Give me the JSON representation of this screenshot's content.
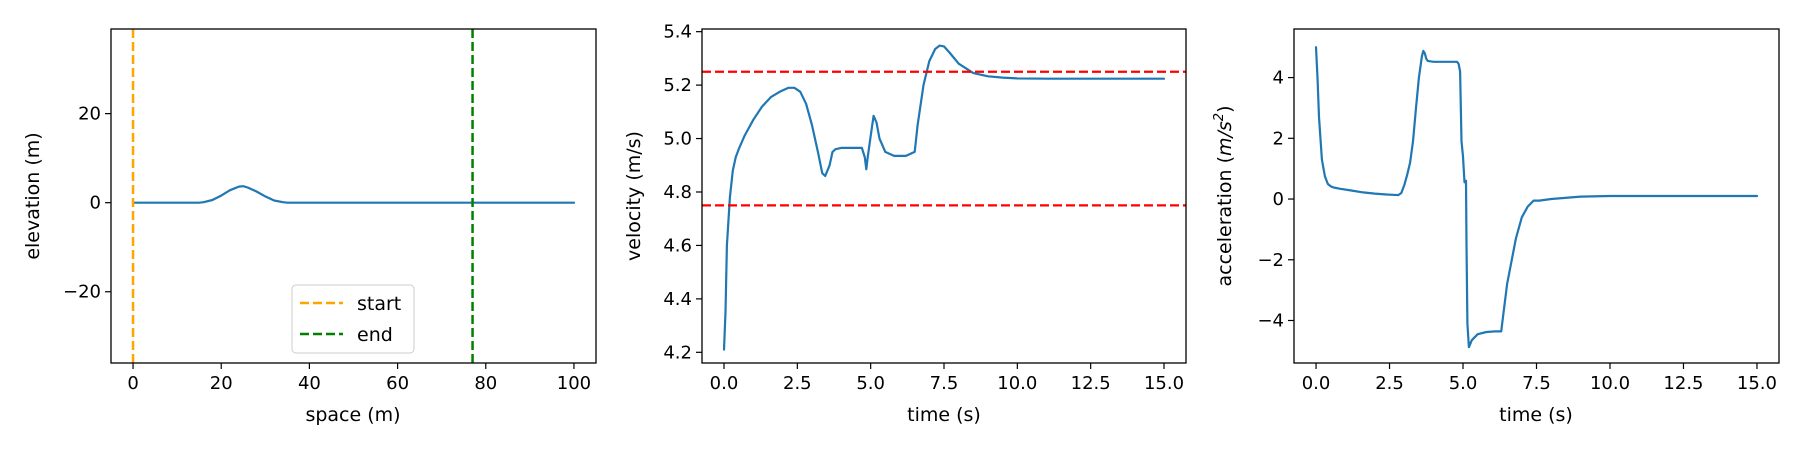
{
  "chart_data": [
    {
      "type": "line",
      "xlabel": "space (m)",
      "ylabel": "elevation (m)",
      "xlim": [
        -5,
        105
      ],
      "ylim": [
        -36,
        39
      ],
      "xticks": [
        0,
        20,
        40,
        60,
        80,
        100
      ],
      "xtick_labels": [
        "0",
        "20",
        "40",
        "60",
        "80",
        "100"
      ],
      "yticks": [
        -20,
        0,
        20
      ],
      "ytick_labels": [
        "−20",
        "0",
        "20"
      ],
      "grid": false,
      "legend_position": "lower-center",
      "series": [
        {
          "color": "#1f77b4",
          "x": [
            0,
            5,
            10,
            15,
            16,
            18,
            20,
            22,
            24,
            25,
            26,
            28,
            30,
            32,
            34,
            35,
            40,
            50,
            60,
            70,
            80,
            90,
            100
          ],
          "y": [
            0,
            0,
            0,
            0,
            0.1,
            0.6,
            1.6,
            2.8,
            3.6,
            3.7,
            3.4,
            2.5,
            1.4,
            0.5,
            0.1,
            0,
            0,
            0,
            0,
            0,
            0,
            0,
            0
          ]
        }
      ],
      "vlines": [
        {
          "name": "start",
          "x": 0,
          "color": "#ffa500",
          "dash": true
        },
        {
          "name": "end",
          "x": 77,
          "color": "#008000",
          "dash": true
        }
      ]
    },
    {
      "type": "line",
      "xlabel": "time (s)",
      "ylabel": "velocity (m/s)",
      "xlim": [
        -0.75,
        15.75
      ],
      "ylim": [
        4.16,
        5.41
      ],
      "xticks": [
        0,
        2.5,
        5,
        7.5,
        10,
        12.5,
        15
      ],
      "xtick_labels": [
        "0.0",
        "2.5",
        "5.0",
        "7.5",
        "10.0",
        "12.5",
        "15.0"
      ],
      "yticks": [
        4.2,
        4.4,
        4.6,
        4.8,
        5.0,
        5.2,
        5.4
      ],
      "ytick_labels": [
        "4.2",
        "4.4",
        "4.6",
        "4.8",
        "5.0",
        "5.2",
        "5.4"
      ],
      "grid": false,
      "series": [
        {
          "color": "#1f77b4",
          "x": [
            0,
            0.05,
            0.1,
            0.2,
            0.3,
            0.4,
            0.5,
            0.7,
            1.0,
            1.3,
            1.6,
            1.9,
            2.2,
            2.4,
            2.6,
            2.8,
            3.0,
            3.2,
            3.35,
            3.45,
            3.6,
            3.7,
            3.8,
            4.0,
            4.4,
            4.7,
            4.8,
            4.85,
            4.9,
            5.0,
            5.1,
            5.2,
            5.3,
            5.5,
            5.8,
            6.2,
            6.5,
            6.6,
            6.8,
            7.0,
            7.2,
            7.35,
            7.5,
            7.7,
            8.0,
            8.5,
            9.0,
            9.5,
            10.0,
            11.0,
            12.0,
            13.0,
            14.0,
            15.0
          ],
          "y": [
            4.21,
            4.35,
            4.6,
            4.78,
            4.88,
            4.93,
            4.96,
            5.01,
            5.07,
            5.12,
            5.155,
            5.175,
            5.19,
            5.19,
            5.175,
            5.13,
            5.05,
            4.95,
            4.87,
            4.86,
            4.9,
            4.95,
            4.96,
            4.965,
            4.965,
            4.965,
            4.93,
            4.885,
            4.93,
            5.01,
            5.085,
            5.06,
            5.0,
            4.95,
            4.935,
            4.935,
            4.95,
            5.05,
            5.2,
            5.29,
            5.335,
            5.348,
            5.345,
            5.32,
            5.28,
            5.245,
            5.233,
            5.228,
            5.225,
            5.224,
            5.224,
            5.224,
            5.224,
            5.224
          ]
        }
      ],
      "hlines": [
        {
          "y": 5.25,
          "color": "#ff0000",
          "dash": true
        },
        {
          "y": 4.75,
          "color": "#ff0000",
          "dash": true
        }
      ]
    },
    {
      "type": "line",
      "xlabel": "time (s)",
      "ylabel": "acceleration (m/s²)",
      "ylabel_parts": {
        "prefix": "acceleration (",
        "unit_base": "m/s",
        "unit_exp": "2",
        "suffix": ")"
      },
      "xlim": [
        -0.75,
        15.75
      ],
      "ylim": [
        -5.4,
        5.6
      ],
      "xticks": [
        0,
        2.5,
        5,
        7.5,
        10,
        12.5,
        15
      ],
      "xtick_labels": [
        "0.0",
        "2.5",
        "5.0",
        "7.5",
        "10.0",
        "12.5",
        "15.0"
      ],
      "yticks": [
        -4,
        -2,
        0,
        2,
        4
      ],
      "ytick_labels": [
        "−4",
        "−2",
        "0",
        "2",
        "4"
      ],
      "grid": false,
      "series": [
        {
          "color": "#1f77b4",
          "x": [
            0,
            0.05,
            0.1,
            0.2,
            0.3,
            0.4,
            0.5,
            0.6,
            0.8,
            1.2,
            1.6,
            2.0,
            2.4,
            2.8,
            2.9,
            3.0,
            3.1,
            3.2,
            3.3,
            3.4,
            3.5,
            3.6,
            3.65,
            3.7,
            3.75,
            3.8,
            4.0,
            4.2,
            4.5,
            4.8,
            4.85,
            4.9,
            4.95,
            5.0,
            5.05,
            5.1,
            5.12,
            5.15,
            5.2,
            5.3,
            5.5,
            5.8,
            6.1,
            6.3,
            6.5,
            6.8,
            7.0,
            7.2,
            7.4,
            7.6,
            8.0,
            9.0,
            10.0,
            12.0,
            15.0
          ],
          "y": [
            5.0,
            4.0,
            2.7,
            1.3,
            0.75,
            0.5,
            0.42,
            0.38,
            0.34,
            0.28,
            0.22,
            0.18,
            0.15,
            0.13,
            0.2,
            0.45,
            0.8,
            1.2,
            1.9,
            3.0,
            4.0,
            4.7,
            4.88,
            4.8,
            4.62,
            4.55,
            4.52,
            4.52,
            4.52,
            4.52,
            4.45,
            4.2,
            1.9,
            1.4,
            0.55,
            0.6,
            -1.5,
            -4.1,
            -4.88,
            -4.65,
            -4.45,
            -4.38,
            -4.36,
            -4.36,
            -2.8,
            -1.3,
            -0.6,
            -0.25,
            -0.05,
            -0.05,
            0.0,
            0.08,
            0.1,
            0.1,
            0.1
          ]
        }
      ]
    }
  ]
}
